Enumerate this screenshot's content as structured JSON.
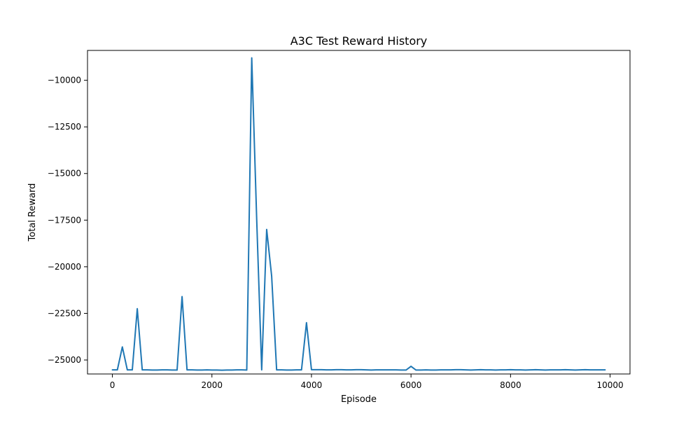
{
  "chart_data": {
    "type": "line",
    "title": "A3C Test Reward History",
    "xlabel": "Episode",
    "ylabel": "Total Reward",
    "xlim": [
      -500,
      10400
    ],
    "ylim": [
      -25750,
      -8400
    ],
    "x_ticks": [
      0,
      2000,
      4000,
      6000,
      8000,
      10000
    ],
    "x_tick_labels": [
      "0",
      "2000",
      "4000",
      "6000",
      "8000",
      "10000"
    ],
    "y_ticks": [
      -10000,
      -12500,
      -15000,
      -17500,
      -20000,
      -22500,
      -25000
    ],
    "y_tick_labels": [
      "−10000",
      "−12500",
      "−15000",
      "−17500",
      "−20000",
      "−22500",
      "−25000"
    ],
    "grid": false,
    "line_color": "#1f77b4",
    "series": [
      {
        "x": [
          0,
          100,
          200,
          300,
          400,
          500,
          600,
          700,
          800,
          900,
          1000,
          1100,
          1200,
          1300,
          1400,
          1500,
          1600,
          1700,
          1800,
          1900,
          2000,
          2100,
          2200,
          2300,
          2400,
          2500,
          2600,
          2700,
          2800,
          2900,
          3000,
          3100,
          3200,
          3300,
          3400,
          3500,
          3600,
          3700,
          3800,
          3900,
          4000,
          4100,
          4200,
          4300,
          4400,
          4500,
          4600,
          4700,
          4800,
          4900,
          5000,
          5100,
          5200,
          5300,
          5400,
          5500,
          5600,
          5700,
          5800,
          5900,
          6000,
          6100,
          6200,
          6300,
          6400,
          6500,
          6600,
          6700,
          6800,
          6900,
          7000,
          7100,
          7200,
          7300,
          7400,
          7500,
          7600,
          7700,
          7800,
          7900,
          8000,
          8100,
          8200,
          8300,
          8400,
          8500,
          8600,
          8700,
          8800,
          8900,
          9000,
          9100,
          9200,
          9300,
          9400,
          9500,
          9600,
          9700,
          9800,
          9900
        ],
        "y": [
          -25530,
          -25530,
          -24300,
          -25530,
          -25530,
          -22250,
          -25530,
          -25530,
          -25540,
          -25540,
          -25530,
          -25530,
          -25540,
          -25540,
          -21600,
          -25530,
          -25530,
          -25540,
          -25540,
          -25530,
          -25540,
          -25540,
          -25550,
          -25540,
          -25540,
          -25530,
          -25530,
          -25540,
          -8800,
          -17500,
          -25530,
          -18000,
          -20500,
          -25530,
          -25530,
          -25540,
          -25540,
          -25530,
          -25530,
          -23000,
          -25520,
          -25520,
          -25520,
          -25530,
          -25530,
          -25520,
          -25520,
          -25530,
          -25530,
          -25520,
          -25520,
          -25530,
          -25540,
          -25530,
          -25530,
          -25530,
          -25530,
          -25530,
          -25540,
          -25540,
          -25340,
          -25540,
          -25540,
          -25530,
          -25540,
          -25540,
          -25530,
          -25530,
          -25530,
          -25520,
          -25520,
          -25530,
          -25540,
          -25530,
          -25520,
          -25530,
          -25530,
          -25540,
          -25530,
          -25530,
          -25520,
          -25530,
          -25530,
          -25540,
          -25530,
          -25520,
          -25530,
          -25540,
          -25530,
          -25530,
          -25530,
          -25520,
          -25530,
          -25540,
          -25530,
          -25520,
          -25530,
          -25530,
          -25530,
          -25530
        ]
      }
    ]
  }
}
